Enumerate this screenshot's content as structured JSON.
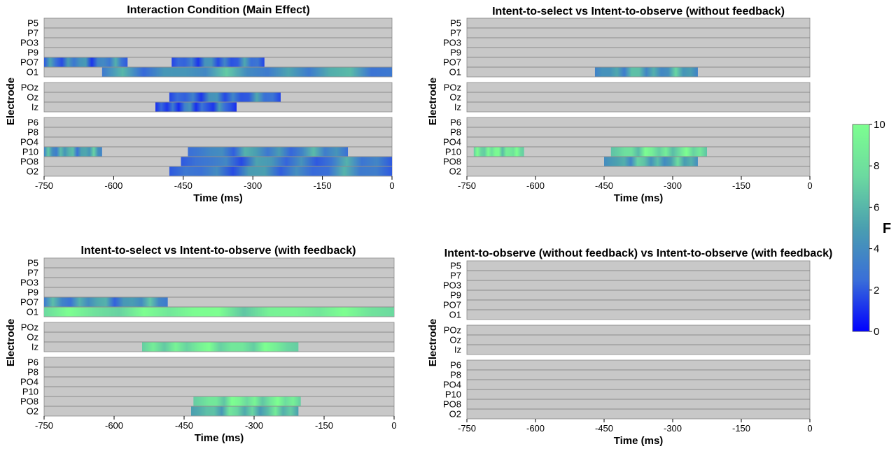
{
  "chart_data": {
    "type": "heatmap",
    "time_unit": "ms",
    "xlim": [
      -750,
      0
    ],
    "xticks": [
      -750,
      -600,
      -450,
      -300,
      -150,
      0
    ],
    "xlabel": "Time (ms)",
    "ylabel": "Electrode",
    "electrode_groups": [
      [
        "P5",
        "P7",
        "PO3",
        "P9",
        "PO7",
        "O1"
      ],
      [
        "POz",
        "Oz",
        "Iz"
      ],
      [
        "P6",
        "P8",
        "PO4",
        "P10",
        "PO8",
        "O2"
      ]
    ],
    "colorbar": {
      "title": "F",
      "min": 0,
      "max": 10,
      "ticks": [
        0,
        2,
        4,
        6,
        8,
        10
      ],
      "colors": [
        "#0000ff",
        "#3a6fd8",
        "#4a9fb0",
        "#6cd9a0",
        "#7dff90"
      ]
    },
    "background_color": "#c8c8c8",
    "panels": [
      {
        "title": "Interaction Condition (Main Effect)",
        "show_ylabel": true,
        "significant_segments": [
          {
            "electrode": "PO7",
            "start": -750,
            "end": -570,
            "f_mean": 3.5
          },
          {
            "electrode": "PO7",
            "start": -475,
            "end": -275,
            "f_mean": 3.0
          },
          {
            "electrode": "O1",
            "start": -625,
            "end": 0,
            "f_mean": 4.5
          },
          {
            "electrode": "Oz",
            "start": -480,
            "end": -240,
            "f_mean": 3.0
          },
          {
            "electrode": "Iz",
            "start": -510,
            "end": -335,
            "f_mean": 2.5
          },
          {
            "electrode": "P10",
            "start": -750,
            "end": -625,
            "f_mean": 5.0
          },
          {
            "electrode": "P10",
            "start": -440,
            "end": -95,
            "f_mean": 4.0
          },
          {
            "electrode": "PO8",
            "start": -455,
            "end": 0,
            "f_mean": 3.5
          },
          {
            "electrode": "O2",
            "start": -480,
            "end": 0,
            "f_mean": 3.5
          }
        ]
      },
      {
        "title": "Intent-to-select vs Intent-to-observe (without feedback)",
        "show_ylabel": true,
        "significant_segments": [
          {
            "electrode": "O1",
            "start": -470,
            "end": -245,
            "f_mean": 5.0
          },
          {
            "electrode": "P10",
            "start": -735,
            "end": -625,
            "f_mean": 8.5
          },
          {
            "electrode": "P10",
            "start": -435,
            "end": -225,
            "f_mean": 8.0
          },
          {
            "electrode": "PO8",
            "start": -450,
            "end": -245,
            "f_mean": 5.5
          }
        ]
      },
      {
        "title": "Intent-to-select vs Intent-to-observe (with feedback)",
        "show_ylabel": true,
        "significant_segments": [
          {
            "electrode": "PO7",
            "start": -750,
            "end": -485,
            "f_mean": 4.5
          },
          {
            "electrode": "O1",
            "start": -750,
            "end": 0,
            "f_mean": 9.0
          },
          {
            "electrode": "Iz",
            "start": -540,
            "end": -205,
            "f_mean": 8.5
          },
          {
            "electrode": "PO8",
            "start": -430,
            "end": -200,
            "f_mean": 8.5
          },
          {
            "electrode": "O2",
            "start": -435,
            "end": -205,
            "f_mean": 6.5
          }
        ]
      },
      {
        "title": "Intent-to-observe (without feedback) vs Intent-to-observe (with feedback)",
        "show_ylabel": true,
        "significant_segments": []
      }
    ]
  }
}
